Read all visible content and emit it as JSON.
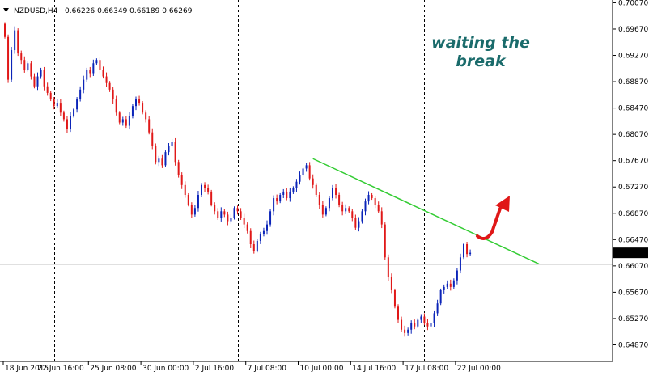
{
  "header": {
    "symbol": "NZDUSD,H4",
    "ohlc": "0.66226 0.66349 0.66189 0.66269"
  },
  "annotation": {
    "line1": "waiting the",
    "line2": "break",
    "color": "#1a6b6b"
  },
  "colors": {
    "bull": "#0b24b8",
    "bear": "#e01818",
    "trendline": "#33cc33",
    "arrow": "#e01818",
    "price_tag_bg": "#000000",
    "price_tag_text": "#ffffff"
  },
  "chart_data": {
    "type": "candlestick",
    "title": "",
    "xlabel": "",
    "ylabel": "",
    "ylim": [
      0.6463,
      0.701
    ],
    "grid": "vertical-dashed",
    "y_ticks": [
      "0.70070",
      "0.69670",
      "0.69270",
      "0.68870",
      "0.68470",
      "0.68070",
      "0.67670",
      "0.67270",
      "0.66870",
      "0.66470",
      "0.66070",
      "0.65670",
      "0.65270",
      "0.64870"
    ],
    "x_ticks": [
      {
        "label": "18 Jun 2015",
        "index": 0
      },
      {
        "label": "22 Jun 16:00",
        "index": 10
      },
      {
        "label": "25 Jun 08:00",
        "index": 26
      },
      {
        "label": "30 Jun 00:00",
        "index": 42
      },
      {
        "label": "2 Jul 16:00",
        "index": 58
      },
      {
        "label": "7 Jul 08:00",
        "index": 74
      },
      {
        "label": "10 Jul 00:00",
        "index": 90
      },
      {
        "label": "14 Jul 16:00",
        "index": 106
      },
      {
        "label": "17 Jul 08:00",
        "index": 122
      },
      {
        "label": "22 Jul 00:00",
        "index": 138
      }
    ],
    "vertical_grid_indices": [
      15,
      43,
      71,
      100,
      128,
      157
    ],
    "current_price": "0.66269",
    "trendline": {
      "start": {
        "index": 94,
        "price": 0.677
      },
      "end": {
        "index": 159,
        "price": 0.661
      }
    },
    "close": [
      0.6955,
      0.689,
      0.6935,
      0.6965,
      0.693,
      0.692,
      0.6905,
      0.6915,
      0.6895,
      0.688,
      0.6895,
      0.6905,
      0.688,
      0.687,
      0.686,
      0.685,
      0.6855,
      0.684,
      0.683,
      0.6815,
      0.6835,
      0.6845,
      0.686,
      0.6875,
      0.689,
      0.6905,
      0.69,
      0.6915,
      0.692,
      0.6905,
      0.6895,
      0.6885,
      0.6875,
      0.686,
      0.684,
      0.6825,
      0.683,
      0.682,
      0.6835,
      0.685,
      0.686,
      0.6855,
      0.684,
      0.683,
      0.681,
      0.679,
      0.6765,
      0.677,
      0.676,
      0.678,
      0.679,
      0.6795,
      0.6765,
      0.6745,
      0.673,
      0.6715,
      0.67,
      0.6685,
      0.6695,
      0.6715,
      0.673,
      0.6725,
      0.672,
      0.67,
      0.669,
      0.668,
      0.669,
      0.6685,
      0.6675,
      0.668,
      0.6695,
      0.669,
      0.668,
      0.667,
      0.666,
      0.664,
      0.663,
      0.6645,
      0.6655,
      0.666,
      0.667,
      0.669,
      0.671,
      0.6705,
      0.6715,
      0.672,
      0.671,
      0.672,
      0.6725,
      0.6735,
      0.6745,
      0.6755,
      0.676,
      0.674,
      0.673,
      0.6715,
      0.67,
      0.6685,
      0.6695,
      0.671,
      0.6725,
      0.6715,
      0.67,
      0.669,
      0.6695,
      0.669,
      0.668,
      0.6665,
      0.6675,
      0.669,
      0.6705,
      0.6715,
      0.671,
      0.67,
      0.669,
      0.667,
      0.662,
      0.659,
      0.657,
      0.6545,
      0.6525,
      0.651,
      0.6505,
      0.651,
      0.652,
      0.6515,
      0.6525,
      0.653,
      0.652,
      0.6515,
      0.652,
      0.6535,
      0.655,
      0.657,
      0.6575,
      0.658,
      0.6575,
      0.6585,
      0.66,
      0.662,
      0.664,
      0.6625,
      0.6627
    ]
  }
}
